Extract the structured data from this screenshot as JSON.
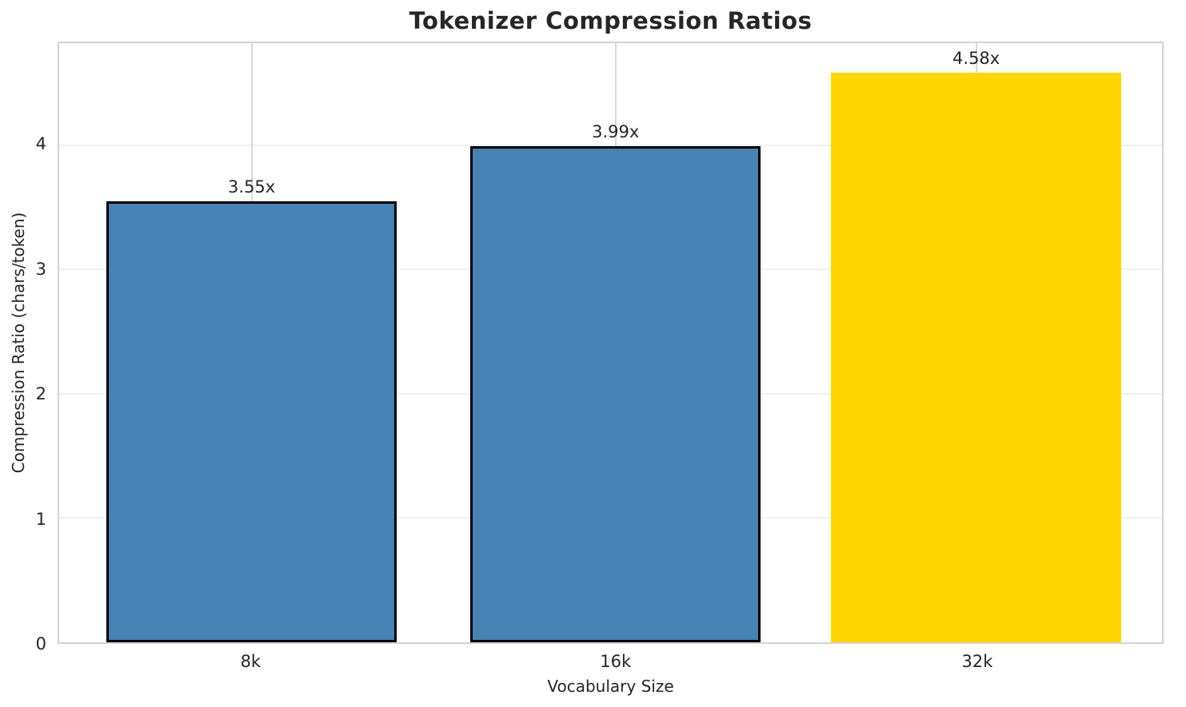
{
  "chart_data": {
    "type": "bar",
    "title": "Tokenizer Compression Ratios",
    "xlabel": "Vocabulary Size",
    "ylabel": "Compression Ratio (chars/token)",
    "categories": [
      "8k",
      "16k",
      "32k"
    ],
    "values": [
      3.55,
      3.99,
      4.58
    ],
    "bar_labels": [
      "3.55x",
      "3.99x",
      "4.58x"
    ],
    "bar_colors": [
      "#4682B4",
      "#4682B4",
      "#FFD700"
    ],
    "bar_edge_colors": [
      "#000000",
      "#000000",
      "none"
    ],
    "series_color": "#4682B4",
    "highlight_color": "#FFD700",
    "yticks": [
      0,
      1,
      2,
      3,
      4
    ],
    "ytick_labels": [
      "0",
      "1",
      "2",
      "3",
      "4"
    ],
    "ylim": [
      0,
      4.82
    ],
    "grid": true,
    "legend_position": "none"
  }
}
